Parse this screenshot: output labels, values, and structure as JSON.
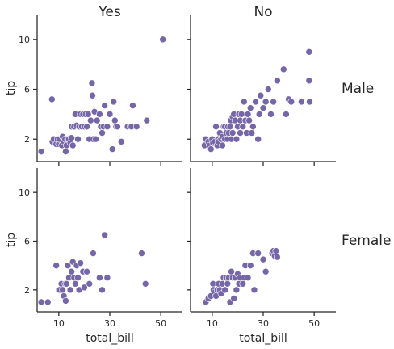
{
  "chart_data": {
    "type": "scatter",
    "col_titles": [
      "Yes",
      "No"
    ],
    "row_titles": [
      "Male",
      "Female"
    ],
    "xlabel": "total_bill",
    "ylabel": "tip",
    "xticks": [
      10,
      30,
      50
    ],
    "yticks": [
      2,
      6,
      10
    ],
    "xlim": [
      1.5,
      58.5
    ],
    "ylim": [
      0.2,
      12.0
    ],
    "point_color": "#7566a8",
    "panels": [
      {
        "row": "Male",
        "col": "Yes",
        "points": [
          [
            3.1,
            1.0
          ],
          [
            7.3,
            5.2
          ],
          [
            7.5,
            1.8
          ],
          [
            8.0,
            2.0
          ],
          [
            9.0,
            1.6
          ],
          [
            9.5,
            2.0
          ],
          [
            10.0,
            1.6
          ],
          [
            10.3,
            2.0
          ],
          [
            11.2,
            1.5
          ],
          [
            11.5,
            2.2
          ],
          [
            12.0,
            1.8
          ],
          [
            12.5,
            2.0
          ],
          [
            12.7,
            1.0
          ],
          [
            13.0,
            1.5
          ],
          [
            13.5,
            2.0
          ],
          [
            14.0,
            2.0
          ],
          [
            14.5,
            1.7
          ],
          [
            15.0,
            2.1
          ],
          [
            15.0,
            3.0
          ],
          [
            15.5,
            1.5
          ],
          [
            16.0,
            3.0
          ],
          [
            16.5,
            4.0
          ],
          [
            17.0,
            3.1
          ],
          [
            17.5,
            2.0
          ],
          [
            18.0,
            3.0
          ],
          [
            18.5,
            4.0
          ],
          [
            19.0,
            3.0
          ],
          [
            19.5,
            4.0
          ],
          [
            20.0,
            3.0
          ],
          [
            20.5,
            4.0
          ],
          [
            21.0,
            3.0
          ],
          [
            21.5,
            4.0
          ],
          [
            22.0,
            2.0
          ],
          [
            22.5,
            3.5
          ],
          [
            23.0,
            6.5
          ],
          [
            23.2,
            5.5
          ],
          [
            23.5,
            2.0
          ],
          [
            24.0,
            4.2
          ],
          [
            24.5,
            2.0
          ],
          [
            25.0,
            3.5
          ],
          [
            26.0,
            4.0
          ],
          [
            26.5,
            3.0
          ],
          [
            27.0,
            2.5
          ],
          [
            27.5,
            3.0
          ],
          [
            28.0,
            4.7
          ],
          [
            29.0,
            3.0
          ],
          [
            30.0,
            4.0
          ],
          [
            31.0,
            1.2
          ],
          [
            31.5,
            5.0
          ],
          [
            32.0,
            3.5
          ],
          [
            32.5,
            3.0
          ],
          [
            33.0,
            3.0
          ],
          [
            34.5,
            1.8
          ],
          [
            37.0,
            3.0
          ],
          [
            38.0,
            3.0
          ],
          [
            38.5,
            3.0
          ],
          [
            39.0,
            4.7
          ],
          [
            40.5,
            3.0
          ],
          [
            44.5,
            3.5
          ],
          [
            50.8,
            10.0
          ]
        ]
      },
      {
        "row": "Male",
        "col": "No",
        "points": [
          [
            7.0,
            1.5
          ],
          [
            7.5,
            2.0
          ],
          [
            8.5,
            1.8
          ],
          [
            9.0,
            1.5
          ],
          [
            9.5,
            1.2
          ],
          [
            10.0,
            2.0
          ],
          [
            10.3,
            1.7
          ],
          [
            11.0,
            1.8
          ],
          [
            11.5,
            3.0
          ],
          [
            12.0,
            1.5
          ],
          [
            12.3,
            2.0
          ],
          [
            12.5,
            1.8
          ],
          [
            13.0,
            2.5
          ],
          [
            13.5,
            2.0
          ],
          [
            14.0,
            2.2
          ],
          [
            14.0,
            1.5
          ],
          [
            14.5,
            3.0
          ],
          [
            15.0,
            2.0
          ],
          [
            15.0,
            3.0
          ],
          [
            15.5,
            2.5
          ],
          [
            16.0,
            2.0
          ],
          [
            16.2,
            3.0
          ],
          [
            16.5,
            2.5
          ],
          [
            17.0,
            3.0
          ],
          [
            17.3,
            3.5
          ],
          [
            17.5,
            2.0
          ],
          [
            18.0,
            2.5
          ],
          [
            18.0,
            3.8
          ],
          [
            18.5,
            4.0
          ],
          [
            19.0,
            3.5
          ],
          [
            19.5,
            2.0
          ],
          [
            20.0,
            3.0
          ],
          [
            20.5,
            4.0
          ],
          [
            21.0,
            2.5
          ],
          [
            21.0,
            3.5
          ],
          [
            21.5,
            4.0
          ],
          [
            22.0,
            3.0
          ],
          [
            22.5,
            5.0
          ],
          [
            23.0,
            3.5
          ],
          [
            23.5,
            2.5
          ],
          [
            24.0,
            4.0
          ],
          [
            24.5,
            3.5
          ],
          [
            25.0,
            4.5
          ],
          [
            25.5,
            2.5
          ],
          [
            26.0,
            3.0
          ],
          [
            27.0,
            5.0
          ],
          [
            28.0,
            2.0
          ],
          [
            28.5,
            4.0
          ],
          [
            29.0,
            5.5
          ],
          [
            30.0,
            4.5
          ],
          [
            31.0,
            5.0
          ],
          [
            32.0,
            6.0
          ],
          [
            33.0,
            4.0
          ],
          [
            34.0,
            5.0
          ],
          [
            35.5,
            6.7
          ],
          [
            38.0,
            7.6
          ],
          [
            39.0,
            4.0
          ],
          [
            40.0,
            5.2
          ],
          [
            41.0,
            5.0
          ],
          [
            45.0,
            5.0
          ],
          [
            48.0,
            9.0
          ],
          [
            48.0,
            6.7
          ],
          [
            48.2,
            5.0
          ]
        ]
      },
      {
        "row": "Female",
        "col": "Yes",
        "points": [
          [
            3.1,
            1.0
          ],
          [
            5.7,
            1.0
          ],
          [
            9.0,
            4.0
          ],
          [
            10.0,
            2.0
          ],
          [
            10.3,
            2.0
          ],
          [
            11.0,
            2.5
          ],
          [
            11.5,
            2.0
          ],
          [
            12.0,
            1.5
          ],
          [
            12.5,
            2.5
          ],
          [
            12.7,
            1.1
          ],
          [
            13.0,
            2.5
          ],
          [
            13.5,
            4.0
          ],
          [
            14.0,
            3.0
          ],
          [
            14.5,
            2.0
          ],
          [
            15.0,
            3.5
          ],
          [
            15.5,
            4.3
          ],
          [
            16.0,
            3.0
          ],
          [
            16.5,
            2.5
          ],
          [
            17.0,
            4.0
          ],
          [
            17.5,
            3.0
          ],
          [
            18.0,
            2.0
          ],
          [
            18.5,
            4.2
          ],
          [
            19.5,
            3.5
          ],
          [
            20.0,
            2.2
          ],
          [
            21.0,
            3.5
          ],
          [
            22.0,
            2.5
          ],
          [
            23.5,
            5.0
          ],
          [
            26.0,
            3.0
          ],
          [
            27.0,
            2.0
          ],
          [
            28.0,
            6.5
          ],
          [
            29.0,
            3.0
          ],
          [
            42.5,
            5.0
          ],
          [
            44.0,
            2.5
          ]
        ]
      },
      {
        "row": "Female",
        "col": "No",
        "points": [
          [
            7.5,
            1.0
          ],
          [
            8.5,
            1.3
          ],
          [
            9.5,
            1.5
          ],
          [
            10.3,
            2.5
          ],
          [
            10.5,
            2.0
          ],
          [
            11.0,
            1.8
          ],
          [
            11.5,
            1.5
          ],
          [
            12.0,
            2.0
          ],
          [
            12.5,
            2.5
          ],
          [
            13.0,
            2.0
          ],
          [
            13.5,
            1.7
          ],
          [
            14.0,
            2.5
          ],
          [
            14.5,
            3.0
          ],
          [
            15.0,
            2.0
          ],
          [
            15.5,
            3.0
          ],
          [
            16.0,
            2.5
          ],
          [
            16.5,
            3.0
          ],
          [
            17.0,
            1.0
          ],
          [
            17.5,
            3.5
          ],
          [
            18.0,
            3.0
          ],
          [
            18.5,
            1.3
          ],
          [
            19.0,
            3.0
          ],
          [
            19.5,
            2.0
          ],
          [
            20.0,
            3.3
          ],
          [
            20.5,
            2.5
          ],
          [
            21.0,
            3.0
          ],
          [
            22.0,
            2.5
          ],
          [
            22.5,
            3.0
          ],
          [
            23.0,
            4.0
          ],
          [
            24.0,
            3.0
          ],
          [
            25.0,
            4.0
          ],
          [
            26.0,
            5.0
          ],
          [
            26.5,
            2.0
          ],
          [
            28.0,
            5.0
          ],
          [
            30.0,
            4.5
          ],
          [
            31.0,
            3.5
          ],
          [
            33.5,
            5.0
          ],
          [
            34.0,
            5.2
          ],
          [
            34.5,
            4.8
          ],
          [
            35.0,
            5.2
          ],
          [
            35.5,
            4.7
          ]
        ]
      }
    ]
  }
}
